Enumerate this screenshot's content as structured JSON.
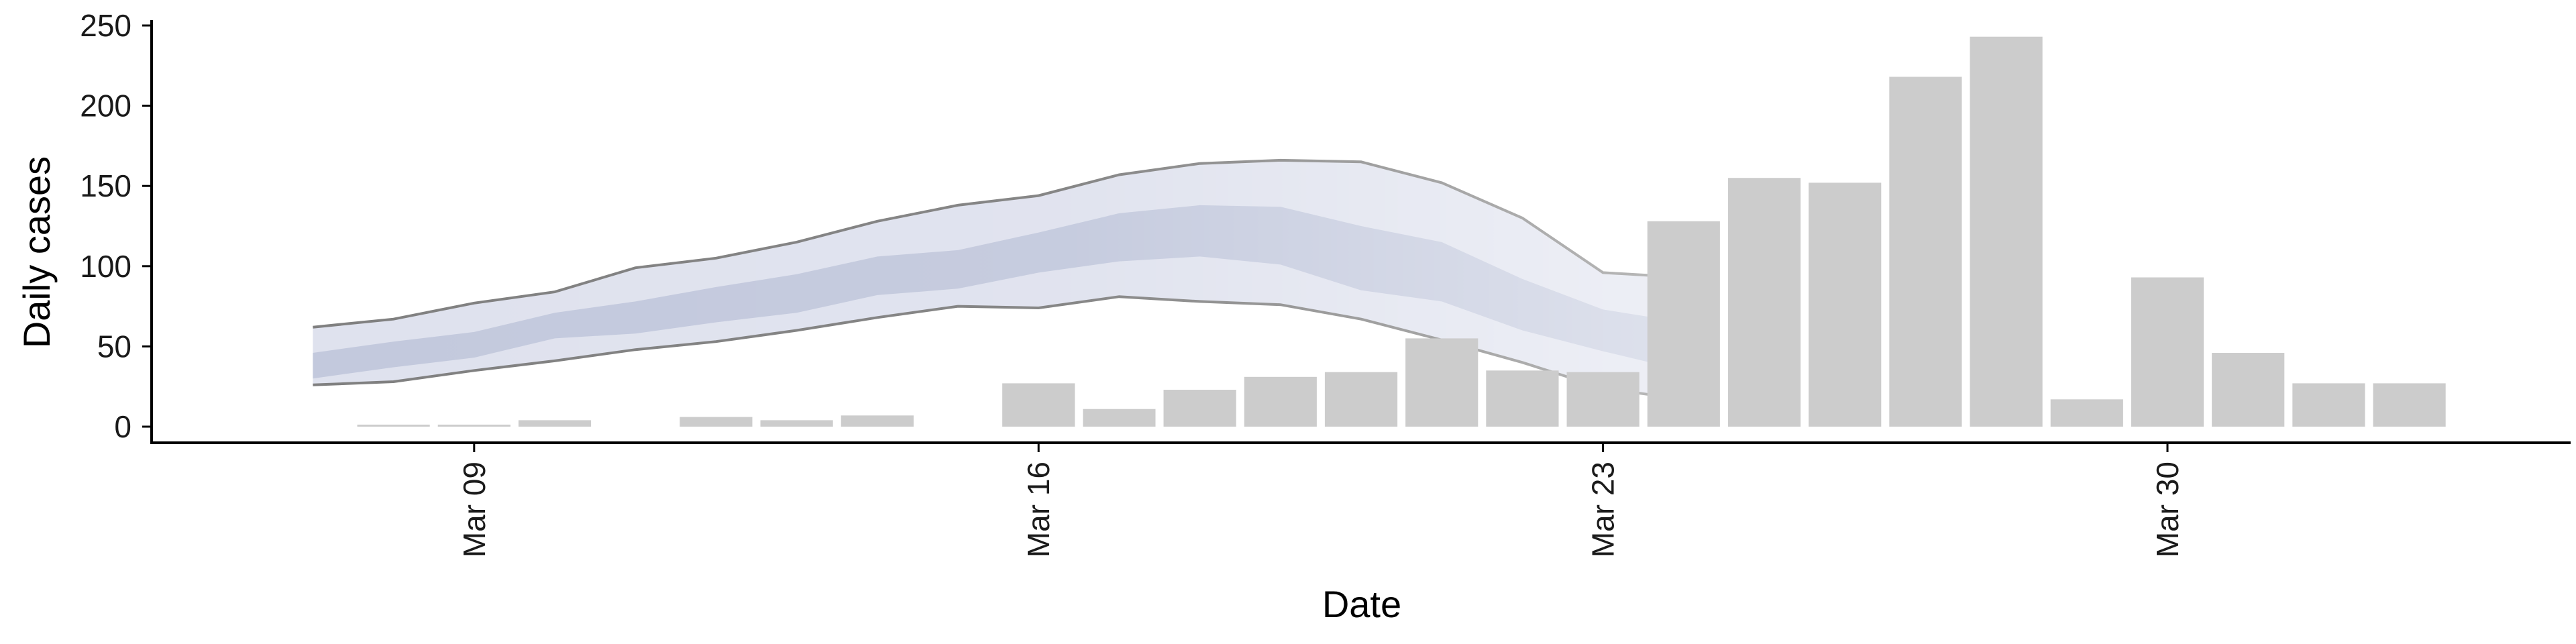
{
  "chart_data": {
    "type": "bar",
    "xlabel": "Date",
    "ylabel": "Daily cases",
    "ylim": [
      0,
      250
    ],
    "yticks": [
      0,
      50,
      100,
      150,
      200,
      250
    ],
    "xticks": [
      {
        "date": "2020-03-09",
        "label": "Mar 09"
      },
      {
        "date": "2020-03-16",
        "label": "Mar 16"
      },
      {
        "date": "2020-03-23",
        "label": "Mar 23"
      },
      {
        "date": "2020-03-30",
        "label": "Mar 30"
      }
    ],
    "xlim": [
      "2020-03-05",
      "2020-04-04"
    ],
    "grid": false,
    "legend": "none",
    "bars": {
      "color": "#cccccc",
      "dates": [
        "2020-03-08",
        "2020-03-09",
        "2020-03-10",
        "2020-03-11",
        "2020-03-12",
        "2020-03-13",
        "2020-03-14",
        "2020-03-15",
        "2020-03-16",
        "2020-03-17",
        "2020-03-18",
        "2020-03-19",
        "2020-03-20",
        "2020-03-21",
        "2020-03-22",
        "2020-03-23",
        "2020-03-24",
        "2020-03-25",
        "2020-03-26",
        "2020-03-27",
        "2020-03-28",
        "2020-03-29",
        "2020-03-30",
        "2020-03-31",
        "2020-04-01",
        "2020-04-02"
      ],
      "values": [
        1,
        1,
        4,
        0,
        6,
        4,
        7,
        0,
        27,
        11,
        23,
        31,
        34,
        55,
        35,
        34,
        128,
        155,
        152,
        218,
        243,
        17,
        93,
        46,
        27,
        27
      ]
    },
    "estimate": {
      "dates": [
        "2020-03-07",
        "2020-03-08",
        "2020-03-09",
        "2020-03-10",
        "2020-03-11",
        "2020-03-12",
        "2020-03-13",
        "2020-03-14",
        "2020-03-15",
        "2020-03-16",
        "2020-03-17",
        "2020-03-18",
        "2020-03-19",
        "2020-03-20",
        "2020-03-21",
        "2020-03-22",
        "2020-03-23",
        "2020-03-24"
      ],
      "outer_upper": [
        62,
        67,
        77,
        84,
        99,
        105,
        115,
        128,
        138,
        144,
        157,
        164,
        166,
        165,
        152,
        130,
        96,
        93
      ],
      "outer_lower": [
        26,
        28,
        35,
        41,
        48,
        53,
        60,
        68,
        75,
        74,
        81,
        78,
        76,
        67,
        54,
        40,
        24,
        17
      ],
      "inner_upper": [
        46,
        53,
        59,
        71,
        78,
        87,
        95,
        106,
        110,
        121,
        133,
        138,
        137,
        125,
        115,
        92,
        73,
        65
      ],
      "inner_lower": [
        30,
        37,
        43,
        55,
        58,
        65,
        71,
        82,
        86,
        96,
        103,
        106,
        101,
        85,
        78,
        60,
        47,
        35
      ],
      "outer_color": "#dfe2ee",
      "inner_color": "#c3c9dd",
      "line_color": "#808080"
    }
  }
}
